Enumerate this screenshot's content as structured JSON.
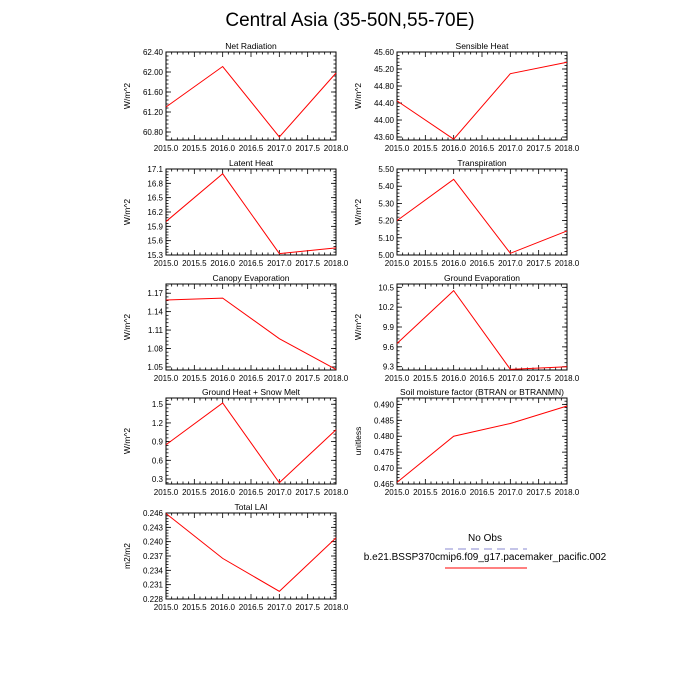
{
  "figure": {
    "title": "Central Asia (35-50N,55-70E)"
  },
  "colors": {
    "model_line": "#ff0000",
    "obs_line": "#b0b0e0",
    "axis": "#000000"
  },
  "legend": {
    "obs_label": "No Obs",
    "model_label": "b.e21.BSSP370cmip6.f09_g17.pacemaker_pacific.002"
  },
  "chart_data": [
    {
      "type": "line",
      "title": "Net Radiation",
      "ylabel": "W/m^2",
      "x": [
        2015.0,
        2016.0,
        2017.0,
        2018.0
      ],
      "x_ticks": [
        "2015.0",
        "2015.5",
        "2016.0",
        "2016.5",
        "2017.0",
        "2017.5",
        "2018.0"
      ],
      "xlim": [
        2015.0,
        2018.0
      ],
      "ylim": [
        60.64,
        62.4
      ],
      "y_ticks": [
        "60.80",
        "61.20",
        "61.60",
        "62.00",
        "62.40"
      ],
      "series": [
        {
          "values": [
            61.3,
            62.11,
            60.7,
            61.98
          ]
        }
      ]
    },
    {
      "type": "line",
      "title": "Sensible Heat",
      "ylabel": "W/m^2",
      "x": [
        2015.0,
        2016.0,
        2017.0,
        2018.0
      ],
      "x_ticks": [
        "2015.0",
        "2015.5",
        "2016.0",
        "2016.5",
        "2017.0",
        "2017.5",
        "2018.0"
      ],
      "xlim": [
        2015.0,
        2018.0
      ],
      "ylim": [
        43.53,
        45.6
      ],
      "y_ticks": [
        "43.60",
        "44.00",
        "44.40",
        "44.80",
        "45.20",
        "45.60"
      ],
      "series": [
        {
          "values": [
            44.45,
            43.55,
            45.09,
            45.36
          ]
        }
      ]
    },
    {
      "type": "line",
      "title": "Latent Heat",
      "ylabel": "W/m^2",
      "x": [
        2015.0,
        2016.0,
        2017.0,
        2018.0
      ],
      "x_ticks": [
        "2015.0",
        "2015.5",
        "2016.0",
        "2016.5",
        "2017.0",
        "2017.5",
        "2018.0"
      ],
      "xlim": [
        2015.0,
        2018.0
      ],
      "ylim": [
        15.3,
        17.1
      ],
      "y_ticks": [
        "15.3",
        "15.6",
        "15.9",
        "16.2",
        "16.5",
        "16.8",
        "17.1"
      ],
      "series": [
        {
          "values": [
            16.0,
            17.0,
            15.33,
            15.45
          ]
        }
      ]
    },
    {
      "type": "line",
      "title": "Transpiration",
      "ylabel": "W/m^2",
      "x": [
        2015.0,
        2016.0,
        2017.0,
        2018.0
      ],
      "x_ticks": [
        "2015.0",
        "2015.5",
        "2016.0",
        "2016.5",
        "2017.0",
        "2017.5",
        "2018.0"
      ],
      "xlim": [
        2015.0,
        2018.0
      ],
      "ylim": [
        5.0,
        5.5
      ],
      "y_ticks": [
        "5.00",
        "5.10",
        "5.20",
        "5.30",
        "5.40",
        "5.50"
      ],
      "series": [
        {
          "values": [
            5.2,
            5.44,
            5.01,
            5.14
          ]
        }
      ]
    },
    {
      "type": "line",
      "title": "Canopy Evaporation",
      "ylabel": "W/m^2",
      "x": [
        2015.0,
        2016.0,
        2017.0,
        2018.0
      ],
      "x_ticks": [
        "2015.0",
        "2015.5",
        "2016.0",
        "2016.5",
        "2017.0",
        "2017.5",
        "2018.0"
      ],
      "xlim": [
        2015.0,
        2018.0
      ],
      "ylim": [
        1.045,
        1.185
      ],
      "y_ticks": [
        "1.05",
        "1.08",
        "1.11",
        "1.14",
        "1.17"
      ],
      "series": [
        {
          "values": [
            1.159,
            1.162,
            1.096,
            1.046
          ]
        }
      ]
    },
    {
      "type": "line",
      "title": "Ground Evaporation",
      "ylabel": "W/m^2",
      "x": [
        2015.0,
        2016.0,
        2017.0,
        2018.0
      ],
      "x_ticks": [
        "2015.0",
        "2015.5",
        "2016.0",
        "2016.5",
        "2017.0",
        "2017.5",
        "2018.0"
      ],
      "xlim": [
        2015.0,
        2018.0
      ],
      "ylim": [
        9.25,
        10.55
      ],
      "y_ticks": [
        "9.3",
        "9.6",
        "9.9",
        "10.2",
        "10.5"
      ],
      "series": [
        {
          "values": [
            9.65,
            10.45,
            9.26,
            9.3
          ]
        }
      ]
    },
    {
      "type": "line",
      "title": "Ground Heat + Snow Melt",
      "ylabel": "W/m^2",
      "x": [
        2015.0,
        2016.0,
        2017.0,
        2018.0
      ],
      "x_ticks": [
        "2015.0",
        "2015.5",
        "2016.0",
        "2016.5",
        "2017.0",
        "2017.5",
        "2018.0"
      ],
      "xlim": [
        2015.0,
        2018.0
      ],
      "ylim": [
        0.22,
        1.6
      ],
      "y_ticks": [
        "0.3",
        "0.6",
        "0.9",
        "1.2",
        "1.5"
      ],
      "series": [
        {
          "values": [
            0.85,
            1.52,
            0.24,
            1.09
          ]
        }
      ]
    },
    {
      "type": "line",
      "title": "Soil moisture factor (BTRAN or BTRANMN)",
      "ylabel": "unitless",
      "x": [
        2015.0,
        2016.0,
        2017.0,
        2018.0
      ],
      "x_ticks": [
        "2015.0",
        "2015.5",
        "2016.0",
        "2016.5",
        "2017.0",
        "2017.5",
        "2018.0"
      ],
      "xlim": [
        2015.0,
        2018.0
      ],
      "ylim": [
        0.465,
        0.492
      ],
      "y_ticks": [
        "0.465",
        "0.470",
        "0.475",
        "0.480",
        "0.485",
        "0.490"
      ],
      "series": [
        {
          "values": [
            0.4655,
            0.48,
            0.484,
            0.4895
          ]
        }
      ]
    },
    {
      "type": "line",
      "title": "Total LAI",
      "ylabel": "m2/m2",
      "x": [
        2015.0,
        2016.0,
        2017.0,
        2018.0
      ],
      "x_ticks": [
        "2015.0",
        "2015.5",
        "2016.0",
        "2016.5",
        "2017.0",
        "2017.5",
        "2018.0"
      ],
      "xlim": [
        2015.0,
        2018.0
      ],
      "ylim": [
        0.228,
        0.246
      ],
      "y_ticks": [
        "0.228",
        "0.231",
        "0.234",
        "0.237",
        "0.240",
        "0.243",
        "0.246"
      ],
      "series": [
        {
          "values": [
            0.2459,
            0.2365,
            0.2296,
            0.2408
          ]
        }
      ]
    }
  ]
}
